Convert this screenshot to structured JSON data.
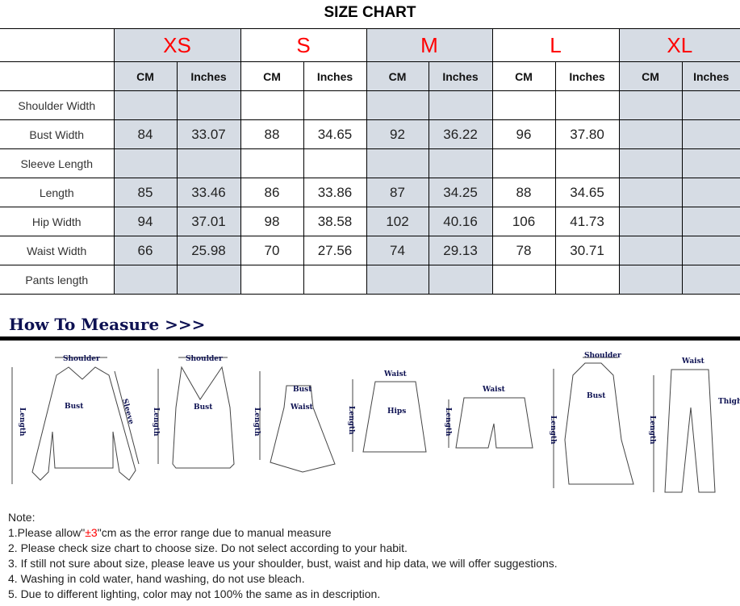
{
  "title": "SIZE CHART",
  "sizes": [
    "XS",
    "S",
    "M",
    "L",
    "XL"
  ],
  "units": {
    "cm": "CM",
    "inches": "Inches"
  },
  "rows": [
    {
      "label": "Shoulder Width",
      "values": [
        "",
        "",
        "",
        "",
        "",
        "",
        "",
        "",
        "",
        ""
      ]
    },
    {
      "label": "Bust Width",
      "values": [
        "84",
        "33.07",
        "88",
        "34.65",
        "92",
        "36.22",
        "96",
        "37.80",
        "",
        ""
      ]
    },
    {
      "label": "Sleeve Length",
      "values": [
        "",
        "",
        "",
        "",
        "",
        "",
        "",
        "",
        "",
        ""
      ]
    },
    {
      "label": "Length",
      "values": [
        "85",
        "33.46",
        "86",
        "33.86",
        "87",
        "34.25",
        "88",
        "34.65",
        "",
        ""
      ]
    },
    {
      "label": "Hip Width",
      "values": [
        "94",
        "37.01",
        "98",
        "38.58",
        "102",
        "40.16",
        "106",
        "41.73",
        "",
        ""
      ]
    },
    {
      "label": "Waist Width",
      "values": [
        "66",
        "25.98",
        "70",
        "27.56",
        "74",
        "29.13",
        "78",
        "30.71",
        "",
        ""
      ]
    },
    {
      "label": "Pants length",
      "values": [
        "",
        "",
        "",
        "",
        "",
        "",
        "",
        "",
        "",
        ""
      ]
    }
  ],
  "how_to_measure": "How To Measure >>>",
  "figure_labels": {
    "shoulder": "Shoulder",
    "length": "Length",
    "bust": "Bust",
    "sleeve": "Sleeve",
    "waist": "Waist",
    "hips": "Hips",
    "thigh": "Thigh"
  },
  "colors": {
    "shade": "#d6dce4",
    "size_label": "#ff0000",
    "measure_label": "#0d1152"
  },
  "notes": {
    "heading": "Note:",
    "line1_a": "1.Please allow\"",
    "line1_b": "±3",
    "line1_c": "\"cm as the error range due to manual measure",
    "line2": "2. Please check size chart to choose size. Do not select according to your habit.",
    "line3": "3. If still not sure about size, please leave us your shoulder, bust, waist and hip data, we will offer suggestions.",
    "line4": "4. Washing in cold water, hand washing, do not use bleach.",
    "line5": "5. Due to different lighting, color may not 100% the same as in description."
  }
}
